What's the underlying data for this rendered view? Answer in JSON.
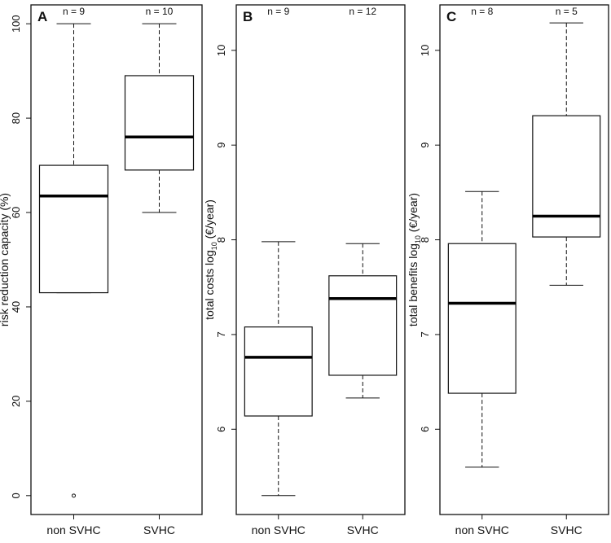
{
  "chart_data": [
    {
      "type": "boxplot",
      "panel_label": "A",
      "ylabel": {
        "main": "risk reduction capacity (%)",
        "sub": "",
        "suffix": ""
      },
      "ylim": [
        -4,
        104
      ],
      "yticks": [
        0,
        20,
        40,
        60,
        80,
        100
      ],
      "categories": [
        "non SVHC",
        "SVHC"
      ],
      "n_labels": [
        "n = 9",
        "n = 10"
      ],
      "boxes": [
        {
          "lower_whisker": 43,
          "q1": 43,
          "median": 63.5,
          "q3": 70,
          "upper_whisker": 100,
          "outliers": [
            0
          ]
        },
        {
          "lower_whisker": 60,
          "q1": 69,
          "median": 76,
          "q3": 89,
          "upper_whisker": 100,
          "outliers": []
        }
      ]
    },
    {
      "type": "boxplot",
      "panel_label": "B",
      "ylabel": {
        "main": "total costs  log",
        "sub": "10",
        "suffix": " (€/year)"
      },
      "ylim": [
        5.1,
        10.48
      ],
      "yticks": [
        6,
        7,
        8,
        9,
        10
      ],
      "categories": [
        "non SVHC",
        "SVHC"
      ],
      "n_labels": [
        "n = 9",
        "n = 12"
      ],
      "boxes": [
        {
          "lower_whisker": 5.3,
          "q1": 6.14,
          "median": 6.76,
          "q3": 7.08,
          "upper_whisker": 7.98,
          "outliers": []
        },
        {
          "lower_whisker": 6.33,
          "q1": 6.57,
          "median": 7.38,
          "q3": 7.62,
          "upper_whisker": 7.96,
          "outliers": []
        }
      ]
    },
    {
      "type": "boxplot",
      "panel_label": "C",
      "ylabel": {
        "main": "total benefits  log",
        "sub": "10",
        "suffix": " (€/year)"
      },
      "ylim": [
        5.1,
        10.48
      ],
      "yticks": [
        6,
        7,
        8,
        9,
        10
      ],
      "categories": [
        "non SVHC",
        "SVHC"
      ],
      "n_labels": [
        "n = 8",
        "n = 5"
      ],
      "boxes": [
        {
          "lower_whisker": 5.6,
          "q1": 6.38,
          "median": 7.33,
          "q3": 7.96,
          "upper_whisker": 8.51,
          "outliers": []
        },
        {
          "lower_whisker": 7.52,
          "q1": 8.03,
          "median": 8.25,
          "q3": 9.31,
          "upper_whisker": 10.29,
          "outliers": []
        }
      ]
    }
  ]
}
